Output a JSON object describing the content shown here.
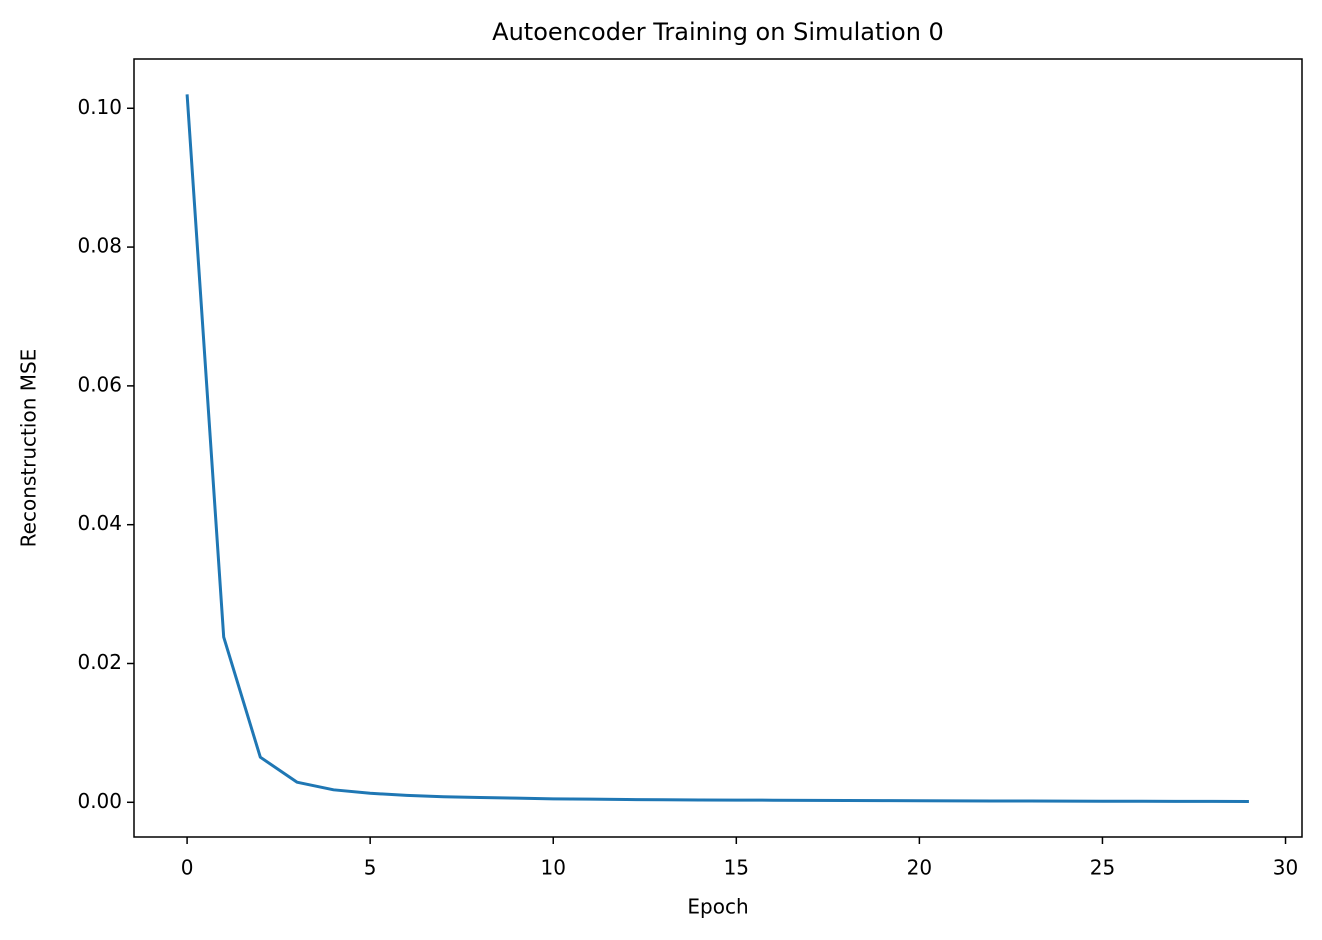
{
  "chart_data": {
    "type": "line",
    "title": "Autoencoder Training on Simulation 0",
    "x_label": "Epoch",
    "y_label": "Reconstruction MSE",
    "x": [
      0,
      1,
      2,
      3,
      4,
      5,
      6,
      7,
      8,
      9,
      10,
      11,
      12,
      13,
      14,
      15,
      16,
      17,
      18,
      19,
      20,
      21,
      22,
      23,
      24,
      25,
      26,
      27,
      28,
      29
    ],
    "series": [
      {
        "name": "Reconstruction MSE",
        "color": "#1f77b4",
        "values": [
          0.102,
          0.0238,
          0.0065,
          0.0029,
          0.0018,
          0.0013,
          0.001,
          0.0008,
          0.0007,
          0.0006,
          0.0005,
          0.00045,
          0.0004,
          0.00037,
          0.00034,
          0.00032,
          0.0003,
          0.00028,
          0.00026,
          0.00024,
          0.00022,
          0.0002,
          0.00019,
          0.00018,
          0.00017,
          0.00016,
          0.00015,
          0.00014,
          0.00013,
          0.00012
        ]
      }
    ],
    "xlim": [
      -1.45,
      30.45
    ],
    "ylim": [
      -0.005,
      0.1071
    ],
    "xticks": [
      0,
      5,
      10,
      15,
      20,
      25,
      30
    ],
    "yticks": [
      {
        "value": 0,
        "label": "0.00"
      },
      {
        "value": 0.02,
        "label": "0.02"
      },
      {
        "value": 0.04,
        "label": "0.04"
      },
      {
        "value": 0.06,
        "label": "0.06"
      },
      {
        "value": 0.08,
        "label": "0.08"
      },
      {
        "value": 0.1,
        "label": "0.10"
      }
    ],
    "grid": false
  }
}
